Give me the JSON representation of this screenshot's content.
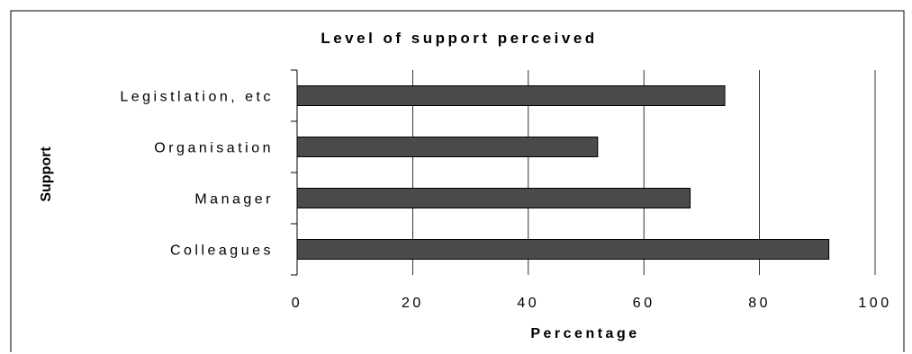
{
  "chart_data": {
    "type": "bar",
    "orientation": "horizontal",
    "title": "Level of support perceived",
    "xlabel": "Percentage",
    "ylabel": "Support",
    "categories": [
      "Legistlation, etc",
      "Organisation",
      "Manager",
      "Colleagues"
    ],
    "values": [
      74,
      52,
      68,
      92
    ],
    "xlim": [
      0,
      100
    ],
    "xticks": [
      0,
      20,
      40,
      60,
      80,
      100
    ],
    "grid": "vertical gridlines",
    "legend": "none",
    "colors": {
      "bar_fill": "#4a4a4a",
      "bar_stroke": "#000000",
      "gridline": "#000000",
      "text": "#000000"
    }
  }
}
